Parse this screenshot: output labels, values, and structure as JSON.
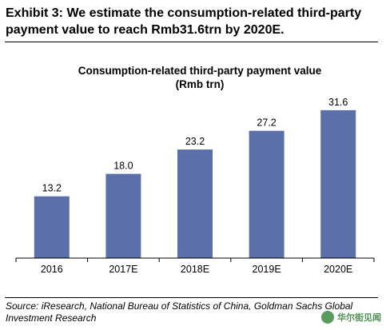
{
  "exhibit": {
    "title": "Exhibit 3: We estimate the consumption-related third-party payment value to reach Rmb31.6trn by 2020E."
  },
  "chart_data": {
    "type": "bar",
    "title": "Consumption-related third-party payment value",
    "subtitle": "(Rmb trn)",
    "categories": [
      "2016",
      "2017E",
      "2018E",
      "2019E",
      "2020E"
    ],
    "values": [
      13.2,
      18.0,
      23.2,
      27.2,
      31.6
    ],
    "value_labels": [
      "13.2",
      "18.0",
      "23.2",
      "27.2",
      "31.6"
    ],
    "ylim": [
      0,
      35
    ],
    "bar_color": "#5b70a8",
    "legend": "none",
    "grid": false
  },
  "source": {
    "text": "Source: iResearch, National Bureau of Statistics of China, Goldman Sachs Global Investment Research"
  },
  "watermark": {
    "text": "华尔街见闻"
  }
}
